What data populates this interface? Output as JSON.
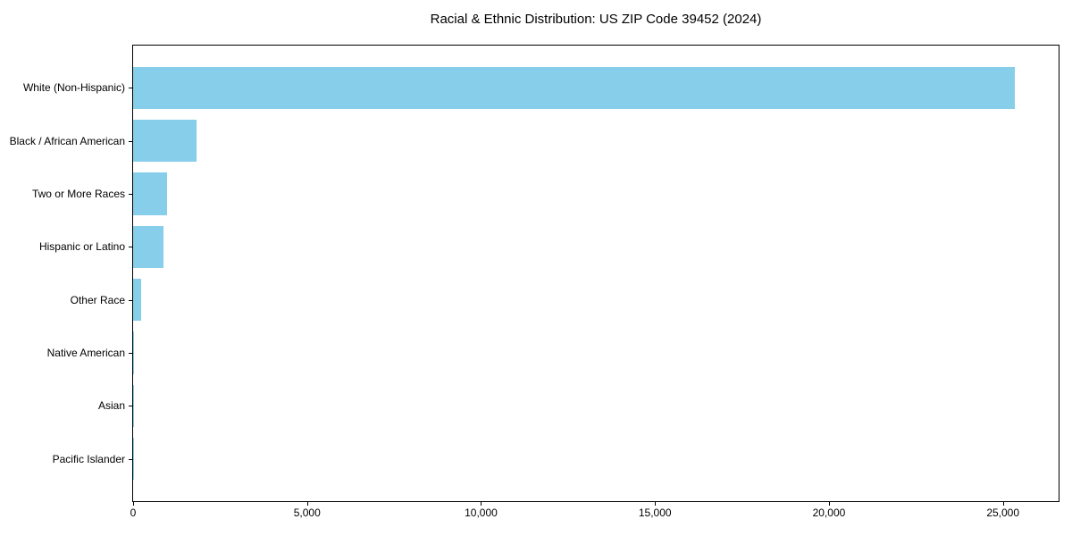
{
  "title": "Racial & Ethnic Distribution: US ZIP Code 39452 (2024)",
  "colors": {
    "bar": "#87CEEB",
    "axis": "#000000",
    "background": "#FFFFFF",
    "text": "#000000"
  },
  "chart_data": {
    "type": "bar",
    "orientation": "horizontal",
    "title": "Racial & Ethnic Distribution: US ZIP Code 39452 (2024)",
    "xlabel": "",
    "ylabel": "",
    "categories": [
      "White (Non-Hispanic)",
      "Black / African American",
      "Two or More Races",
      "Hispanic or Latino",
      "Other Race",
      "Native American",
      "Asian",
      "Pacific Islander"
    ],
    "values": [
      25330,
      1830,
      970,
      880,
      220,
      30,
      20,
      8
    ],
    "bar_color": "#87CEEB",
    "xlim": [
      0,
      26600
    ],
    "x_ticks": [
      0,
      5000,
      10000,
      15000,
      20000,
      25000
    ],
    "x_tick_labels": [
      "0",
      "5,000",
      "10,000",
      "15,000",
      "20,000",
      "25,000"
    ],
    "grid": false,
    "legend": null
  }
}
